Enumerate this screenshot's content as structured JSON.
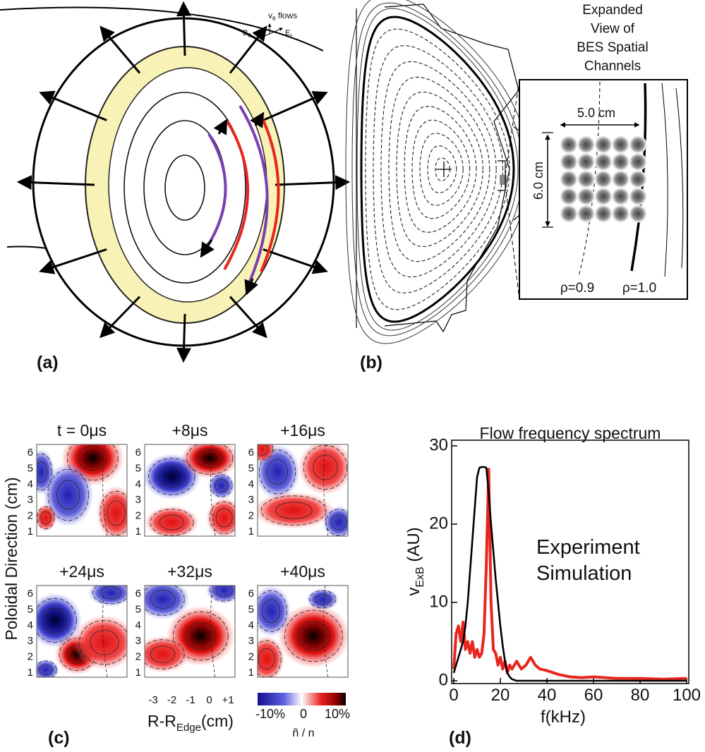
{
  "panel_a": {
    "label": "(a)",
    "flow_axes": {
      "v": "v",
      "v_sub": "θ",
      "v_tail": " flows",
      "b": "B",
      "b_sub": "θ",
      "e": "E",
      "e_sub": "r"
    }
  },
  "panel_b": {
    "label": "(b)",
    "inset_title": [
      "Expanded",
      "View of",
      "BES Spatial",
      "Channels"
    ],
    "width_label": "5.0 cm",
    "height_label": "6.0 cm",
    "rho_inner": "ρ=0.9",
    "rho_outer": "ρ=1.0"
  },
  "panel_c": {
    "label": "(c)",
    "y_label": "Poloidal Direction (cm)",
    "frame_titles": [
      "t = 0μs",
      "+8μs",
      "+16μs",
      "+24μs",
      "+32μs",
      "+40μs"
    ],
    "y_ticks": [
      "6",
      "5",
      "4",
      "3",
      "2",
      "1"
    ],
    "x_ticks": [
      "-3",
      "-2",
      "-1",
      "0",
      "+1"
    ],
    "x_label": {
      "main": "R-R",
      "sub": "Edge",
      "tail": "(cm)"
    },
    "colorbar": {
      "ticks": [
        "-10%",
        "0",
        "10%"
      ],
      "label": "ñ / n"
    }
  },
  "panel_d": {
    "label": "(d)"
  },
  "chart_data": {
    "type": "line",
    "title": "Flow frequency spectrum",
    "x_label": "f(kHz)",
    "y_label": {
      "main": "v",
      "sub": "ExB",
      "tail": " (AU)"
    },
    "x": [
      0,
      1,
      2,
      3,
      4,
      5,
      6,
      7,
      8,
      9,
      10,
      11,
      12,
      13,
      14,
      15,
      16,
      17,
      18,
      19,
      20,
      21,
      22,
      23,
      24,
      25,
      27,
      29,
      31,
      33,
      35,
      37,
      40,
      45,
      50,
      55,
      60,
      70,
      80,
      90,
      100
    ],
    "series": [
      {
        "name": "Experiment",
        "color": "#e8251f",
        "values": [
          1.5,
          6,
          7,
          5,
          7.5,
          4,
          5,
          3.5,
          5,
          3,
          4,
          3,
          3.5,
          6,
          15,
          27,
          10,
          4,
          3.5,
          2,
          3,
          1.5,
          2.5,
          1,
          2,
          1.5,
          2.5,
          1.5,
          2,
          3,
          2,
          1.5,
          1.3,
          0.8,
          0.5,
          0.4,
          0.5,
          0.3,
          0.3,
          0.2,
          0.3
        ]
      },
      {
        "name": "Simulation",
        "color": "#000000",
        "values": [
          1,
          2,
          3,
          4,
          5,
          7,
          10,
          14,
          18,
          22,
          26,
          27.2,
          27.3,
          27.3,
          27.2,
          24,
          20,
          16.5,
          13,
          10,
          7,
          4.5,
          2.5,
          1,
          0.5,
          0.2,
          0,
          0,
          0,
          0,
          0,
          0,
          0,
          0,
          0,
          0,
          0,
          0,
          0,
          0,
          0
        ]
      }
    ],
    "xlim": [
      0,
      100
    ],
    "ylim": [
      0,
      30
    ],
    "xticks": [
      0,
      20,
      40,
      60,
      80,
      100
    ],
    "yticks": [
      0,
      10,
      20,
      30
    ]
  }
}
